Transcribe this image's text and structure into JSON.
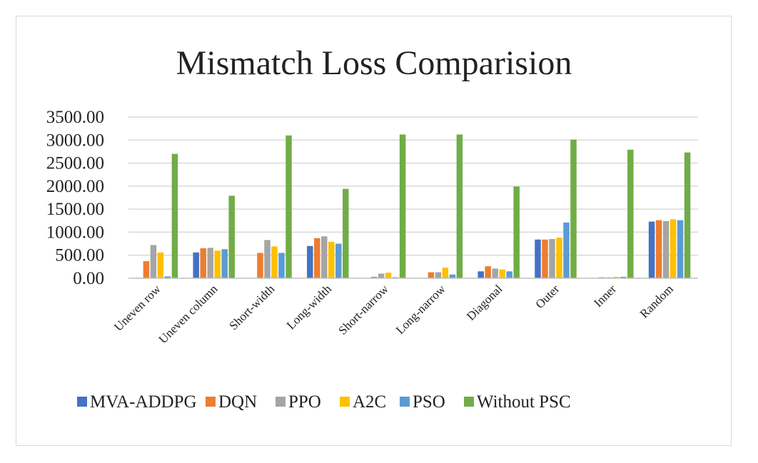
{
  "chart_data": {
    "type": "bar",
    "title": "Mismatch Loss Comparision",
    "xlabel": "",
    "ylabel": "",
    "ylim": [
      0,
      3500
    ],
    "yticks": [
      "0.00",
      "500.00",
      "1000.00",
      "1500.00",
      "2000.00",
      "2500.00",
      "3000.00",
      "3500.00"
    ],
    "grid": true,
    "legend_position": "bottom",
    "categories": [
      "Uneven row",
      "Uneven column",
      "Short-width",
      "Long-width",
      "Short-narrow",
      "Long-narrow",
      "Diagonal",
      "Outer",
      "Inner",
      "Random"
    ],
    "series": [
      {
        "name": "MVA-ADDPG",
        "color": "#4472c4",
        "values": [
          10,
          560,
          0,
          700,
          0,
          0,
          150,
          840,
          0,
          1230
        ]
      },
      {
        "name": "DQN",
        "color": "#ed7d31",
        "values": [
          370,
          650,
          550,
          870,
          30,
          130,
          260,
          840,
          20,
          1260
        ]
      },
      {
        "name": "PPO",
        "color": "#a5a5a5",
        "values": [
          720,
          660,
          830,
          910,
          100,
          130,
          210,
          850,
          20,
          1240
        ]
      },
      {
        "name": "A2C",
        "color": "#ffc000",
        "values": [
          560,
          600,
          690,
          790,
          120,
          230,
          190,
          880,
          30,
          1280
        ]
      },
      {
        "name": "PSO",
        "color": "#5b9bd5",
        "values": [
          40,
          630,
          550,
          750,
          20,
          80,
          150,
          1210,
          30,
          1260
        ]
      },
      {
        "name": "Without PSC",
        "color": "#70ad47",
        "values": [
          2700,
          1790,
          3100,
          1940,
          3120,
          3120,
          1990,
          3010,
          2790,
          2730
        ]
      }
    ]
  }
}
